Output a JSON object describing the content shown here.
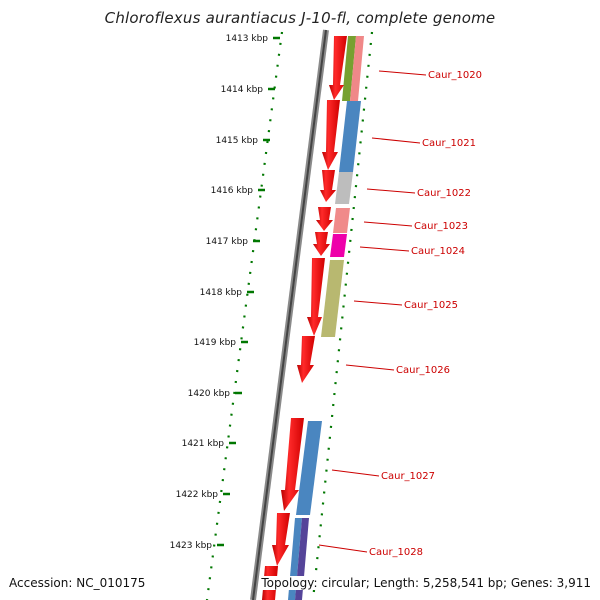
{
  "title": "Chloroflexus aurantiacus J-10-fl, complete genome",
  "accession": "Accession: NC_010175",
  "topology": "Topology: circular; Length: 5,258,541 bp; Genes: 3,911",
  "scale_ticks": [
    "1413 kbp",
    "1414 kbp",
    "1415 kbp",
    "1416 kbp",
    "1417 kbp",
    "1418 kbp",
    "1419 kbp",
    "1420 kbp",
    "1421 kbp",
    "1422 kbp",
    "1423 kbp"
  ],
  "gene_labels": [
    "Caur_1020",
    "Caur_1021",
    "Caur_1022",
    "Caur_1023",
    "Caur_1024",
    "Caur_1025",
    "Caur_1026",
    "Caur_1027",
    "Caur_1028"
  ],
  "colors": {
    "gene_arrow": "#ee0000",
    "label": "#cc0000",
    "scale": "#007700",
    "backbone": "#777777"
  }
}
